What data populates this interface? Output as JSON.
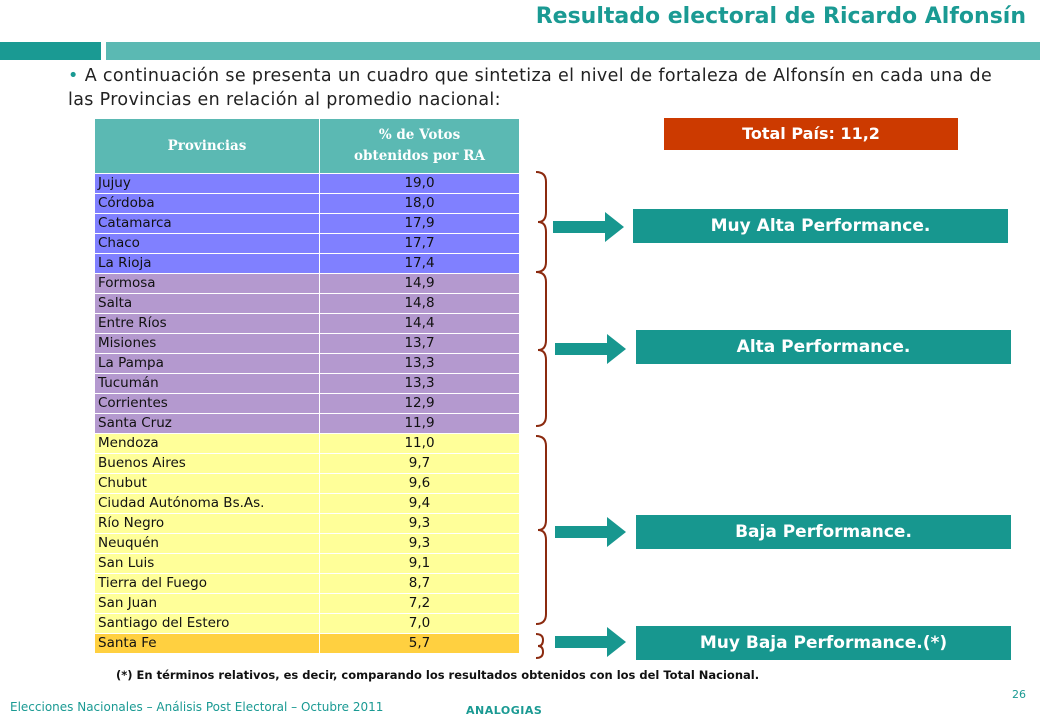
{
  "header": {
    "title": "Resultado electoral de Ricardo Alfonsín"
  },
  "intro": {
    "text": "A continuación se presenta un cuadro que sintetiza el nivel de fortaleza de Alfonsín en cada una de las Provincias en relación al promedio nacional:"
  },
  "table": {
    "col_province": "Provincias",
    "col_votes_line1": "% de Votos",
    "col_votes_line2": "obtenidos por  RA",
    "rows": [
      {
        "province": "Jujuy",
        "value": "19,0",
        "group": "g1"
      },
      {
        "province": "Córdoba",
        "value": "18,0",
        "group": "g1"
      },
      {
        "province": "Catamarca",
        "value": "17,9",
        "group": "g1"
      },
      {
        "province": "Chaco",
        "value": "17,7",
        "group": "g1"
      },
      {
        "province": "La Rioja",
        "value": "17,4",
        "group": "g1"
      },
      {
        "province": "Formosa",
        "value": "14,9",
        "group": "g2"
      },
      {
        "province": "Salta",
        "value": "14,8",
        "group": "g2"
      },
      {
        "province": "Entre Ríos",
        "value": "14,4",
        "group": "g2"
      },
      {
        "province": "Misiones",
        "value": "13,7",
        "group": "g2"
      },
      {
        "province": "La Pampa",
        "value": "13,3",
        "group": "g2"
      },
      {
        "province": "Tucumán",
        "value": "13,3",
        "group": "g2"
      },
      {
        "province": "Corrientes",
        "value": "12,9",
        "group": "g2"
      },
      {
        "province": "Santa Cruz",
        "value": "11,9",
        "group": "g2"
      },
      {
        "province": "Mendoza",
        "value": "11,0",
        "group": "g3"
      },
      {
        "province": "Buenos Aires",
        "value": "9,7",
        "group": "g3"
      },
      {
        "province": "Chubut",
        "value": "9,6",
        "group": "g3"
      },
      {
        "province": "Ciudad Autónoma Bs.As.",
        "value": "9,4",
        "group": "g3"
      },
      {
        "province": "Río Negro",
        "value": "9,3",
        "group": "g3"
      },
      {
        "province": "Neuquén",
        "value": "9,3",
        "group": "g3"
      },
      {
        "province": "San Luis",
        "value": "9,1",
        "group": "g3"
      },
      {
        "province": "Tierra del Fuego",
        "value": "8,7",
        "group": "g3"
      },
      {
        "province": "San Juan",
        "value": "7,2",
        "group": "g3"
      },
      {
        "province": "Santiago del Estero",
        "value": "7,0",
        "group": "g3"
      },
      {
        "province": "Santa Fe",
        "value": "5,7",
        "group": "g4"
      }
    ]
  },
  "total": {
    "label": "Total País: 11,2"
  },
  "categories": {
    "muy_alta": "Muy Alta Performance.",
    "alta": "Alta Performance.",
    "baja": "Baja Performance.",
    "muy_baja": "Muy Baja Performance.(*)"
  },
  "footnote": "(*) En términos relativos, es decir, comparando los resultados obtenidos con los del Total Nacional.",
  "footer": {
    "left": "Elecciones Nacionales – Análisis Post Electoral – Octubre 2011",
    "brand": "ANALOGIAS",
    "page": "26"
  },
  "colors": {
    "teal": "#1a9a93",
    "teal_light": "#5bb9b3",
    "group_muy_alta": "#8080ff",
    "group_alta": "#b499cf",
    "group_baja": "#ffff99",
    "group_muy_baja": "#ffd040",
    "total_bg": "#cc3a00",
    "brace": "#8b2a0f"
  }
}
